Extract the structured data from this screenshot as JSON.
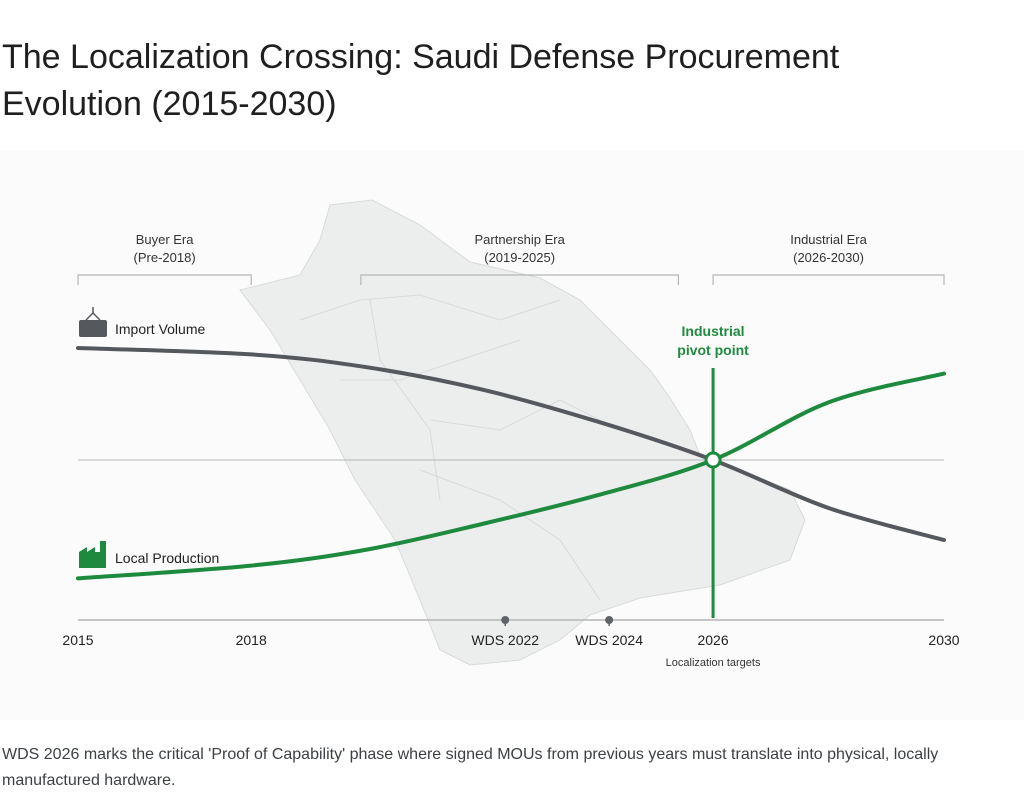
{
  "title": "The Localization Crossing: Saudi Defense Procurement Evolution (2015-2030)",
  "caption": "WDS 2026 marks the critical 'Proof of Capability' phase where signed MOUs from previous years must translate into physical, locally manufactured hardware.",
  "colors": {
    "import": "#55585d",
    "local": "#1e8a3e",
    "map": "#eceeee",
    "axis": "#b5b5b5"
  },
  "chart_data": {
    "type": "line",
    "title": "The Localization Crossing: Saudi Defense Procurement Evolution (2015-2030)",
    "xlim": [
      2015,
      2030
    ],
    "ylim": [
      0,
      100
    ],
    "x_ticks": [
      {
        "x": 2015,
        "label": "2015"
      },
      {
        "x": 2018,
        "label": "2018"
      },
      {
        "x": 2022.4,
        "label": "WDS 2022",
        "marker": true
      },
      {
        "x": 2024.2,
        "label": "WDS 2024",
        "marker": true
      },
      {
        "x": 2026,
        "label": "2026",
        "sublabel": "Localization targets"
      },
      {
        "x": 2030,
        "label": "2030"
      }
    ],
    "x": [
      2015,
      2018,
      2020,
      2022,
      2024,
      2026,
      2028,
      2030
    ],
    "series": [
      {
        "name": "Import Volume",
        "icon": "container-icon",
        "values": [
          85,
          83,
          79,
          72,
          62,
          50,
          35,
          25
        ]
      },
      {
        "name": "Local Production",
        "icon": "factory-icon",
        "values": [
          13,
          17,
          22,
          30,
          39,
          50,
          68,
          77
        ]
      }
    ],
    "eras": [
      {
        "name": "Buyer Era",
        "range": "(Pre-2018)",
        "start": 2015,
        "end": 2018
      },
      {
        "name": "Partnership Era",
        "range": "(2019-2025)",
        "start": 2019.9,
        "end": 2025.4
      },
      {
        "name": "Industrial Era",
        "range": "(2026-2030)",
        "start": 2026,
        "end": 2030
      }
    ],
    "annotations": [
      {
        "x": 2026,
        "y": 50,
        "text": [
          "Industrial",
          "pivot point"
        ]
      }
    ],
    "midline": 50
  }
}
